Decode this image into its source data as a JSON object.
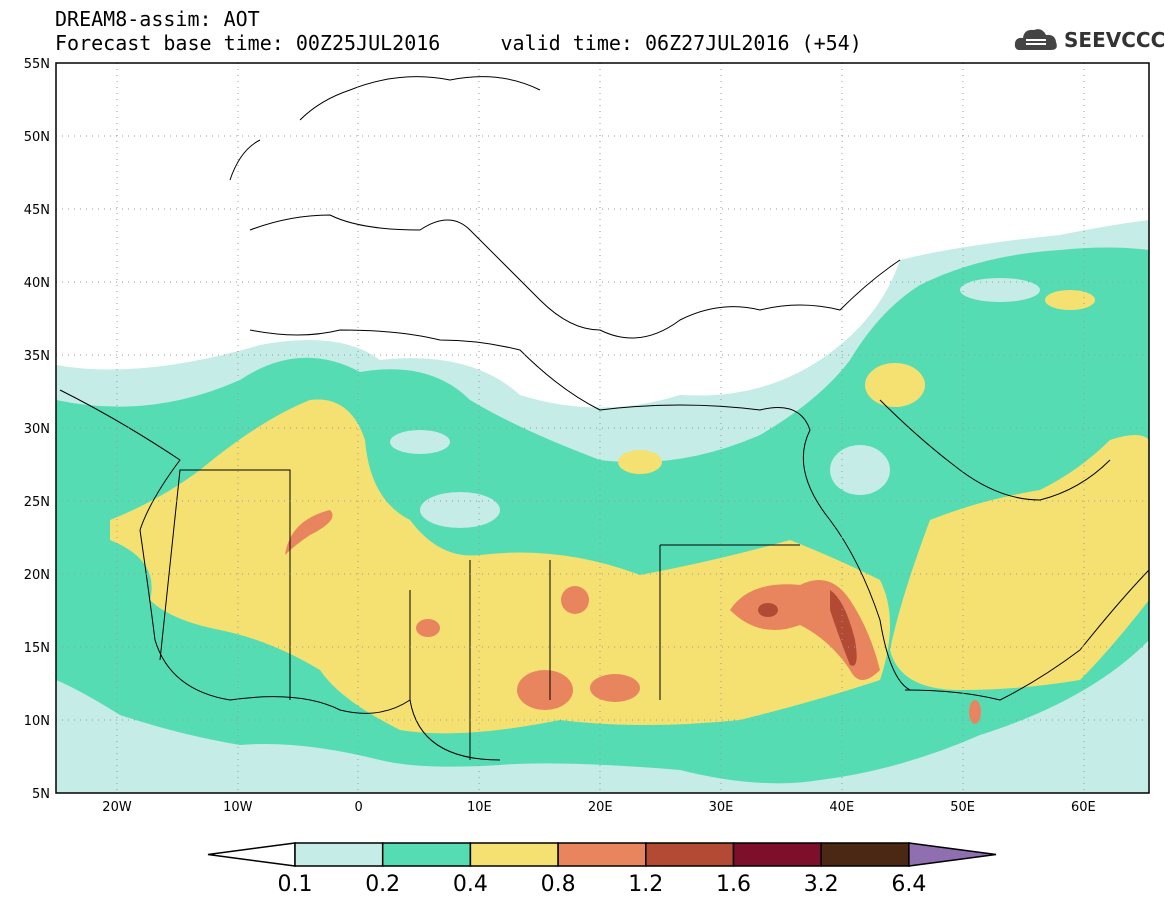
{
  "header": {
    "line1": "DREAM8-assim: AOT",
    "line2": "Forecast base time: 00Z25JUL2016     valid time: 06Z27JUL2016 (+54)"
  },
  "logo": {
    "text": "SEEVCCC",
    "icon": "cloud-logo-icon"
  },
  "axes": {
    "lat_labels": [
      "55N",
      "50N",
      "45N",
      "40N",
      "35N",
      "30N",
      "25N",
      "20N",
      "15N",
      "10N",
      "5N"
    ],
    "lon_labels": [
      "20W",
      "10W",
      "0",
      "10E",
      "20E",
      "30E",
      "40E",
      "50E",
      "60E"
    ]
  },
  "colorbar": {
    "labels": [
      "0.1",
      "0.2",
      "0.4",
      "0.8",
      "1.2",
      "1.6",
      "3.2",
      "6.4"
    ],
    "colors": [
      "#ffffff",
      "#c5ece6",
      "#56dcb3",
      "#f5e171",
      "#e8855e",
      "#b34a33",
      "#7d0f2a",
      "#4a2814",
      "#8f6fb0"
    ]
  },
  "colors": {
    "light_teal": "#c5ece6",
    "teal": "#56dcb3",
    "yellow": "#f5e171",
    "orange": "#e8855e",
    "red_brown": "#b34a33"
  }
}
